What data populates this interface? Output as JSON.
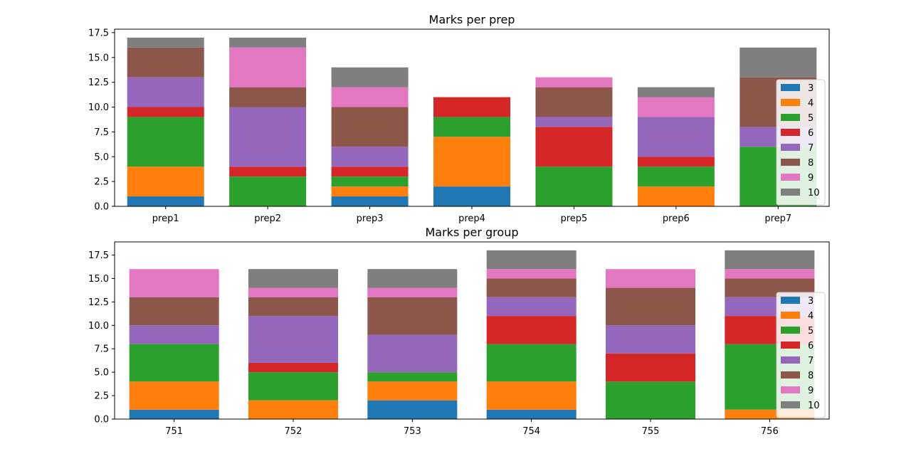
{
  "chart_data": [
    {
      "type": "bar",
      "stacked": true,
      "title": "Marks per prep",
      "xlabel": "",
      "ylabel": "",
      "categories": [
        "prep1",
        "prep2",
        "prep3",
        "prep4",
        "prep5",
        "prep6",
        "prep7"
      ],
      "ylim": [
        0,
        17.85
      ],
      "yticks": [
        "0.0",
        "2.5",
        "5.0",
        "7.5",
        "10.0",
        "12.5",
        "15.0",
        "17.5"
      ],
      "grid": false,
      "legend_position": "right",
      "series": [
        {
          "name": "3",
          "color": "#1f77b4",
          "values": [
            1,
            0,
            1,
            2,
            0,
            0,
            0
          ]
        },
        {
          "name": "4",
          "color": "#ff7f0e",
          "values": [
            3,
            0,
            1,
            5,
            0,
            2,
            0
          ]
        },
        {
          "name": "5",
          "color": "#2ca02c",
          "values": [
            5,
            3,
            1,
            2,
            4,
            2,
            6
          ]
        },
        {
          "name": "6",
          "color": "#d62728",
          "values": [
            1,
            1,
            1,
            2,
            4,
            1,
            0
          ]
        },
        {
          "name": "7",
          "color": "#9467bd",
          "values": [
            3,
            6,
            2,
            0,
            1,
            4,
            2
          ]
        },
        {
          "name": "8",
          "color": "#8c564b",
          "values": [
            3,
            2,
            4,
            0,
            3,
            0,
            5
          ]
        },
        {
          "name": "9",
          "color": "#e377c2",
          "values": [
            0,
            4,
            2,
            0,
            1,
            2,
            0
          ]
        },
        {
          "name": "10",
          "color": "#7f7f7f",
          "values": [
            1,
            1,
            2,
            0,
            0,
            1,
            3
          ]
        }
      ]
    },
    {
      "type": "bar",
      "stacked": true,
      "title": "Marks per group",
      "xlabel": "",
      "ylabel": "",
      "categories": [
        "751",
        "752",
        "753",
        "754",
        "755",
        "756"
      ],
      "ylim": [
        0,
        18.9
      ],
      "yticks": [
        "0.0",
        "2.5",
        "5.0",
        "7.5",
        "10.0",
        "12.5",
        "15.0",
        "17.5"
      ],
      "grid": false,
      "legend_position": "right",
      "series": [
        {
          "name": "3",
          "color": "#1f77b4",
          "values": [
            1,
            0,
            2,
            1,
            0,
            0
          ]
        },
        {
          "name": "4",
          "color": "#ff7f0e",
          "values": [
            3,
            2,
            2,
            3,
            0,
            1
          ]
        },
        {
          "name": "5",
          "color": "#2ca02c",
          "values": [
            4,
            3,
            1,
            4,
            4,
            7
          ]
        },
        {
          "name": "6",
          "color": "#d62728",
          "values": [
            0,
            1,
            0,
            3,
            3,
            3
          ]
        },
        {
          "name": "7",
          "color": "#9467bd",
          "values": [
            2,
            5,
            4,
            2,
            3,
            2
          ]
        },
        {
          "name": "8",
          "color": "#8c564b",
          "values": [
            3,
            2,
            4,
            2,
            4,
            2
          ]
        },
        {
          "name": "9",
          "color": "#e377c2",
          "values": [
            3,
            1,
            1,
            1,
            2,
            1
          ]
        },
        {
          "name": "10",
          "color": "#7f7f7f",
          "values": [
            0,
            2,
            2,
            2,
            0,
            2
          ]
        }
      ]
    }
  ]
}
